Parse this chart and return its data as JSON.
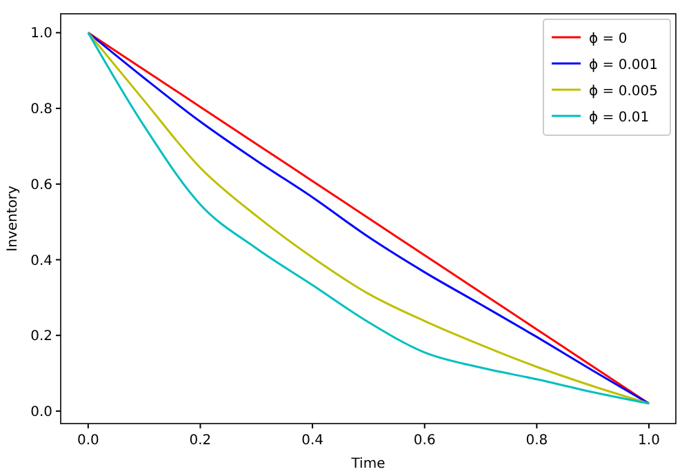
{
  "chart_data": {
    "type": "line",
    "xlabel": "Time",
    "ylabel": "Inventory",
    "xlim": [
      -0.049,
      1.048
    ],
    "ylim": [
      -0.033,
      1.05
    ],
    "xticks": [
      {
        "value": 0,
        "label": "0.0"
      },
      {
        "value": 0.2,
        "label": "0.2"
      },
      {
        "value": 0.4,
        "label": "0.4"
      },
      {
        "value": 0.6,
        "label": "0.6"
      },
      {
        "value": 0.8,
        "label": "0.8"
      },
      {
        "value": 1,
        "label": "1.0"
      }
    ],
    "yticks": [
      {
        "value": 0,
        "label": "0.0"
      },
      {
        "value": 0.2,
        "label": "0.2"
      },
      {
        "value": 0.4,
        "label": "0.4"
      },
      {
        "value": 0.6,
        "label": "0.6"
      },
      {
        "value": 0.8,
        "label": "0.8"
      },
      {
        "value": 1,
        "label": "1.0"
      }
    ],
    "grid": false,
    "legend": "top right",
    "marker": "none",
    "line_style": "solid",
    "x": [
      0,
      0.1,
      0.2,
      0.3,
      0.4,
      0.5,
      0.6,
      0.7,
      0.8,
      0.9,
      1
    ],
    "series": [
      {
        "name": "ϕ = 0",
        "color": "#ff0000",
        "values": [
          1,
          0.902,
          0.804,
          0.706,
          0.608,
          0.51,
          0.412,
          0.314,
          0.216,
          0.118,
          0.02
        ]
      },
      {
        "name": "ϕ = 0.001",
        "color": "#0000ff",
        "values": [
          1,
          0.88,
          0.765,
          0.662,
          0.565,
          0.46,
          0.367,
          0.282,
          0.196,
          0.107,
          0.02
        ]
      },
      {
        "name": "ϕ = 0.005",
        "color": "#bfbf00",
        "values": [
          1,
          0.82,
          0.643,
          0.516,
          0.406,
          0.31,
          0.238,
          0.175,
          0.117,
          0.066,
          0.02
        ]
      },
      {
        "name": "ϕ = 0.01",
        "color": "#00bfbf",
        "values": [
          1,
          0.753,
          0.546,
          0.43,
          0.333,
          0.235,
          0.155,
          0.115,
          0.084,
          0.05,
          0.02
        ]
      }
    ]
  }
}
